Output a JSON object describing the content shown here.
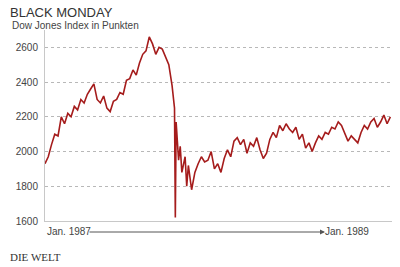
{
  "chart_data": {
    "type": "line",
    "title": "BLACK MONDAY",
    "subtitle": "Dow Jones Index in Punkten",
    "source": "DIE WELT",
    "x": [
      1987.0,
      1987.02,
      1987.04,
      1987.06,
      1987.08,
      1987.1,
      1987.12,
      1987.14,
      1987.16,
      1987.18,
      1987.2,
      1987.22,
      1987.24,
      1987.26,
      1987.28,
      1987.3,
      1987.32,
      1987.34,
      1987.36,
      1987.38,
      1987.4,
      1987.42,
      1987.44,
      1987.46,
      1987.48,
      1987.5,
      1987.52,
      1987.54,
      1987.56,
      1987.58,
      1987.6,
      1987.62,
      1987.64,
      1987.66,
      1987.68,
      1987.7,
      1987.72,
      1987.74,
      1987.76,
      1987.78,
      1987.795,
      1987.8,
      1987.805,
      1987.82,
      1987.83,
      1987.84,
      1987.86,
      1987.87,
      1987.88,
      1987.9,
      1987.92,
      1987.94,
      1987.96,
      1987.98,
      1988.0,
      1988.02,
      1988.04,
      1988.06,
      1988.08,
      1988.1,
      1988.12,
      1988.14,
      1988.16,
      1988.18,
      1988.2,
      1988.22,
      1988.24,
      1988.26,
      1988.28,
      1988.3,
      1988.32,
      1988.34,
      1988.36,
      1988.38,
      1988.4,
      1988.42,
      1988.44,
      1988.46,
      1988.48,
      1988.5,
      1988.52,
      1988.54,
      1988.56,
      1988.58,
      1988.6,
      1988.62,
      1988.64,
      1988.66,
      1988.68,
      1988.7,
      1988.72,
      1988.74,
      1988.76,
      1988.78,
      1988.8,
      1988.82,
      1988.84,
      1988.86,
      1988.88,
      1988.9,
      1988.92,
      1988.94,
      1988.96,
      1988.98,
      1989.0,
      1989.02,
      1989.04,
      1989.06,
      1989.08,
      1989.1,
      1989.12
    ],
    "values": [
      1930,
      1970,
      2040,
      2100,
      2090,
      2200,
      2160,
      2220,
      2200,
      2260,
      2240,
      2300,
      2280,
      2330,
      2360,
      2390,
      2300,
      2280,
      2320,
      2250,
      2230,
      2290,
      2300,
      2340,
      2330,
      2410,
      2420,
      2470,
      2440,
      2510,
      2560,
      2580,
      2660,
      2620,
      2560,
      2600,
      2590,
      2550,
      2500,
      2380,
      2250,
      1620,
      2170,
      1950,
      2030,
      1880,
      1970,
      1800,
      1920,
      1780,
      1880,
      1930,
      1970,
      1940,
      1950,
      2000,
      1900,
      1930,
      1880,
      1960,
      2010,
      1970,
      2060,
      2080,
      2040,
      2070,
      1990,
      2050,
      2030,
      2080,
      2010,
      1960,
      1990,
      2070,
      2110,
      2080,
      2150,
      2120,
      2160,
      2130,
      2110,
      2140,
      2070,
      2100,
      2020,
      2050,
      2000,
      2050,
      2090,
      2070,
      2110,
      2100,
      2140,
      2130,
      2170,
      2150,
      2100,
      2060,
      2090,
      2070,
      2050,
      2110,
      2150,
      2130,
      2170,
      2190,
      2140,
      2170,
      2210,
      2160,
      2200
    ],
    "color": "#a51c1c",
    "xlim": [
      1987,
      1989.13
    ],
    "xticks": [
      {
        "value": 1987,
        "label": "Jan. 1987"
      },
      {
        "value": 1989,
        "label": "Jan. 1989"
      }
    ],
    "ylim": [
      1600,
      2700
    ],
    "yticks": [
      1600,
      1800,
      2000,
      2200,
      2400,
      2600
    ],
    "grid": true
  }
}
